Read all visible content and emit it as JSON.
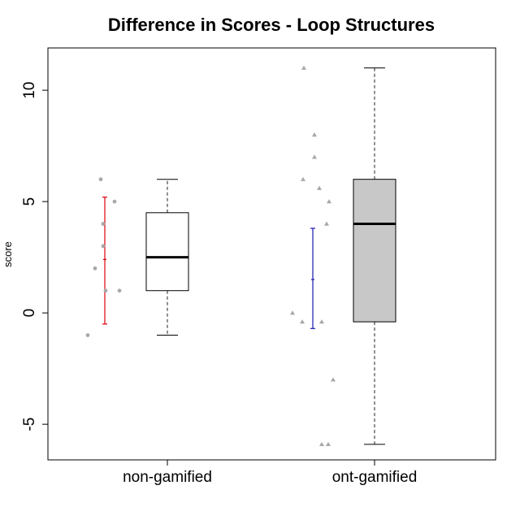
{
  "chart_data": {
    "type": "box",
    "title": "Difference in Scores - Loop Structures",
    "xlabel": "",
    "ylabel": "score",
    "ylim": [
      -6.6,
      11.9
    ],
    "yticks": [
      -5,
      0,
      5,
      10
    ],
    "ytick_labels": [
      "-5",
      "0",
      "5",
      "10"
    ],
    "categories": [
      "non-gamified",
      "ont-gamified"
    ],
    "grid": false,
    "legend": "none",
    "groups": [
      {
        "name": "non-gamified",
        "box": {
          "whisker_low": -1,
          "q1": 1,
          "median": 2.5,
          "q3": 4.5,
          "whisker_high": 6
        },
        "box_fill": "#ffffff",
        "mean_ci": {
          "low": -0.5,
          "mean": 2.4,
          "high": 5.2,
          "color": "#e0000b"
        },
        "points": [
          -1,
          2,
          3,
          4,
          6,
          5,
          1,
          1
        ],
        "point_marker": "circle"
      },
      {
        "name": "ont-gamified",
        "box": {
          "whisker_low": -5.9,
          "q1": -0.4,
          "median": 4,
          "q3": 6,
          "whisker_high": 11
        },
        "box_fill": "#c8c8c8",
        "mean_ci": {
          "low": -0.7,
          "mean": 1.5,
          "high": 3.8,
          "color": "#1a1ab0"
        },
        "points": [
          0,
          -0.4,
          11,
          6,
          7,
          8,
          5.6,
          -0.4,
          5,
          4,
          -3,
          -5.9,
          -5.9
        ],
        "point_marker": "triangle"
      }
    ],
    "colors": {
      "point": "#a8a8a8",
      "whisker": "#555555",
      "frame": "#000000"
    }
  }
}
